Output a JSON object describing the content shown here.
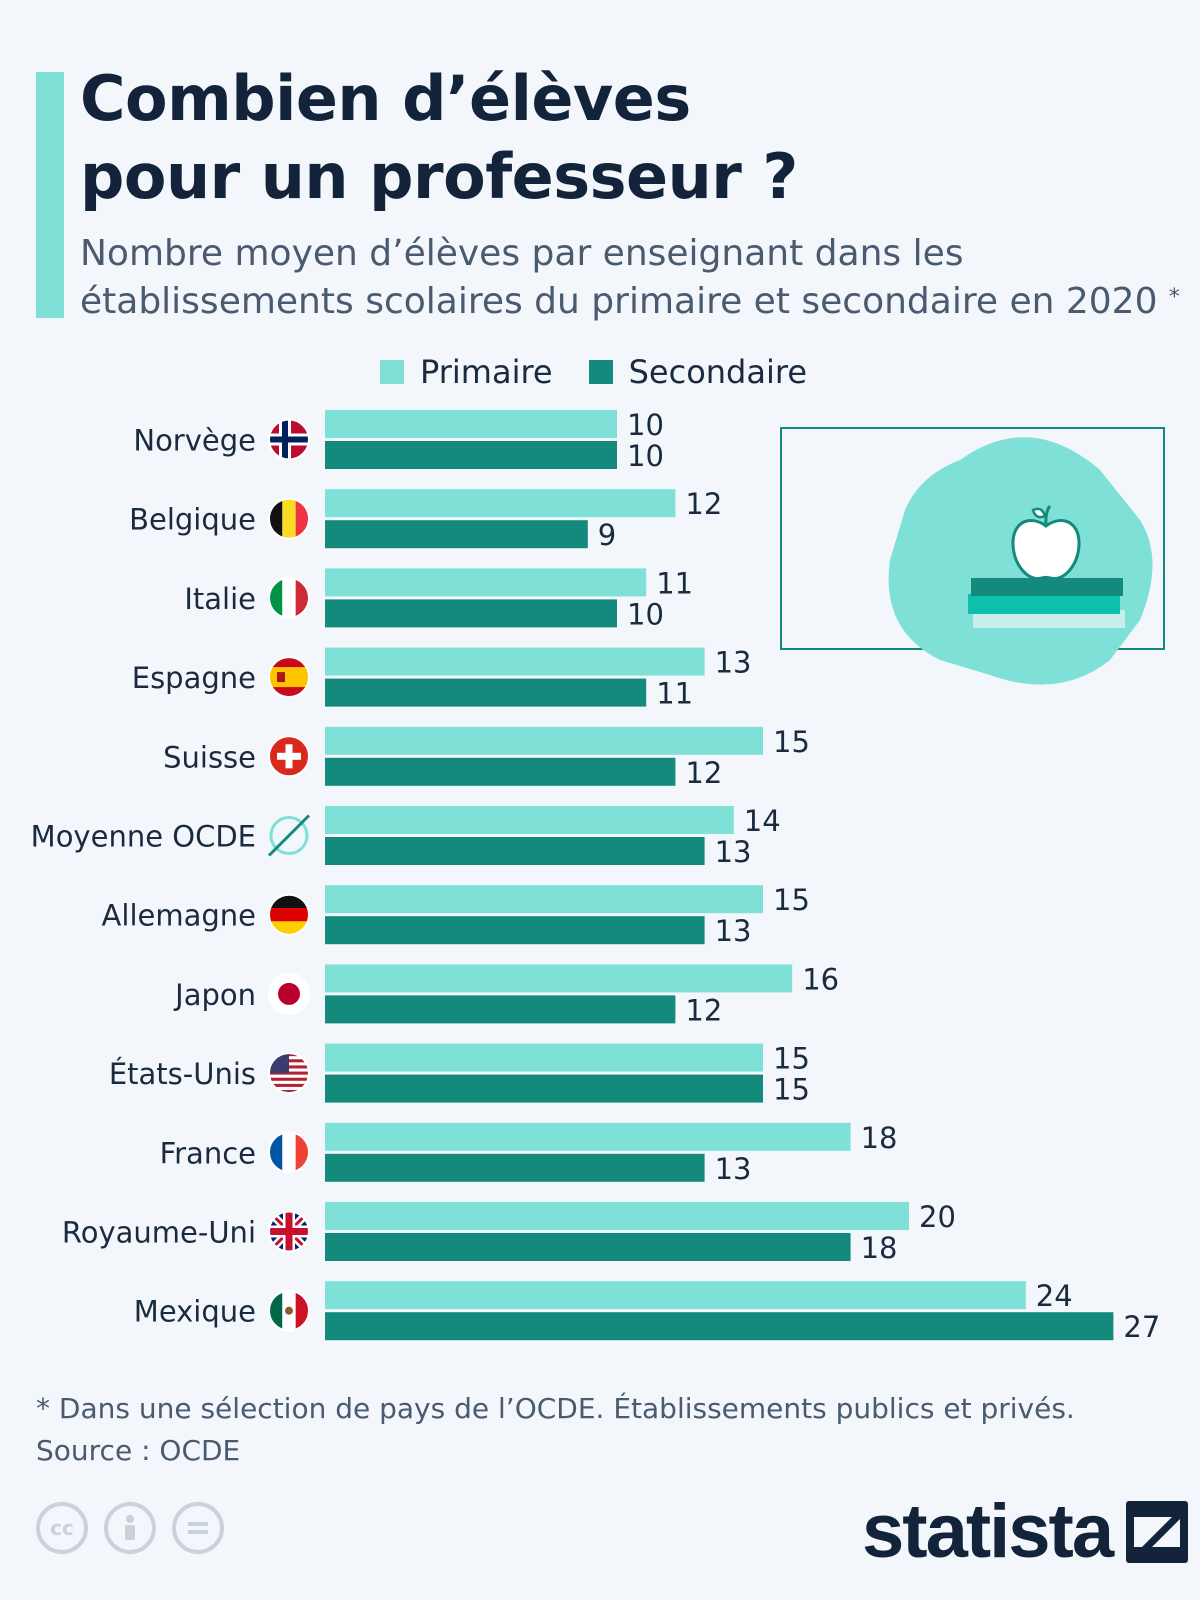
{
  "header": {
    "title_line1": "Combien d’élèves",
    "title_line2": "pour un professeur ?",
    "subtitle_line1": "Nombre moyen d’élèves par enseignant dans les",
    "subtitle_line2": "établissements scolaires du primaire et secondaire en 2020",
    "subtitle_mark": "*"
  },
  "legend": {
    "primary_label": "Primaire",
    "secondary_label": "Secondaire"
  },
  "colors": {
    "primary": "#7fe0d8",
    "secondary": "#138a7c",
    "accent": "#7fe0d8"
  },
  "chart_data": {
    "type": "bar",
    "orientation": "horizontal",
    "categories": [
      "Norvège",
      "Belgique",
      "Italie",
      "Espagne",
      "Suisse",
      "Moyenne OCDE",
      "Allemagne",
      "Japon",
      "États-Unis",
      "France",
      "Royaume-Uni",
      "Mexique"
    ],
    "series": [
      {
        "name": "Primaire",
        "values": [
          10,
          12,
          11,
          13,
          15,
          14,
          15,
          16,
          15,
          18,
          20,
          24
        ]
      },
      {
        "name": "Secondaire",
        "values": [
          10,
          9,
          10,
          11,
          12,
          13,
          13,
          12,
          15,
          13,
          18,
          27
        ]
      }
    ],
    "xlim": [
      0,
      27
    ],
    "grid": false,
    "legend_position": "top",
    "flags": [
      "flag-norway-icon",
      "flag-belgium-icon",
      "flag-italy-icon",
      "flag-spain-icon",
      "flag-switzerland-icon",
      "oecd-average-icon",
      "flag-germany-icon",
      "flag-japan-icon",
      "flag-usa-icon",
      "flag-france-icon",
      "flag-uk-icon",
      "flag-mexico-icon"
    ]
  },
  "footer": {
    "note": "* Dans une sélection de pays de l’OCDE. Établissements publics et privés.",
    "source": "Source : OCDE",
    "brand": "statista"
  }
}
